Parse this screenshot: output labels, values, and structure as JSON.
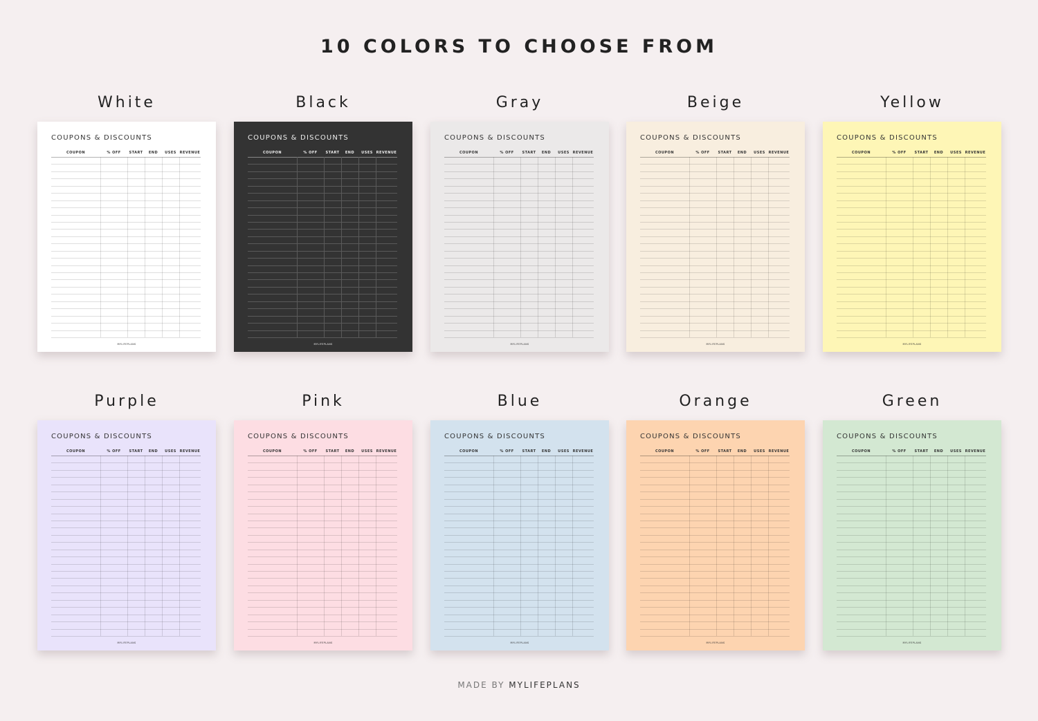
{
  "headline": "10 COLORS TO CHOOSE FROM",
  "sheet": {
    "title": "COUPONS & DISCOUNTS",
    "columns": [
      "COUPON",
      "% OFF",
      "START",
      "END",
      "USES",
      "REVENUE"
    ],
    "footer": "MYLIFEPLANS"
  },
  "variants": [
    {
      "name": "White",
      "color": "#ffffff"
    },
    {
      "name": "Black",
      "color": "#333333"
    },
    {
      "name": "Gray",
      "color": "#ebe9e9"
    },
    {
      "name": "Beige",
      "color": "#f8eedf"
    },
    {
      "name": "Yellow",
      "color": "#fef6b6"
    },
    {
      "name": "Purple",
      "color": "#e9e3fb"
    },
    {
      "name": "Pink",
      "color": "#fddde3"
    },
    {
      "name": "Blue",
      "color": "#d3e2ee"
    },
    {
      "name": "Orange",
      "color": "#fdd4b0"
    },
    {
      "name": "Green",
      "color": "#d3e8d2"
    }
  ],
  "credit": {
    "prefix": "MADE BY",
    "brand": "MYLIFEPLANS"
  }
}
